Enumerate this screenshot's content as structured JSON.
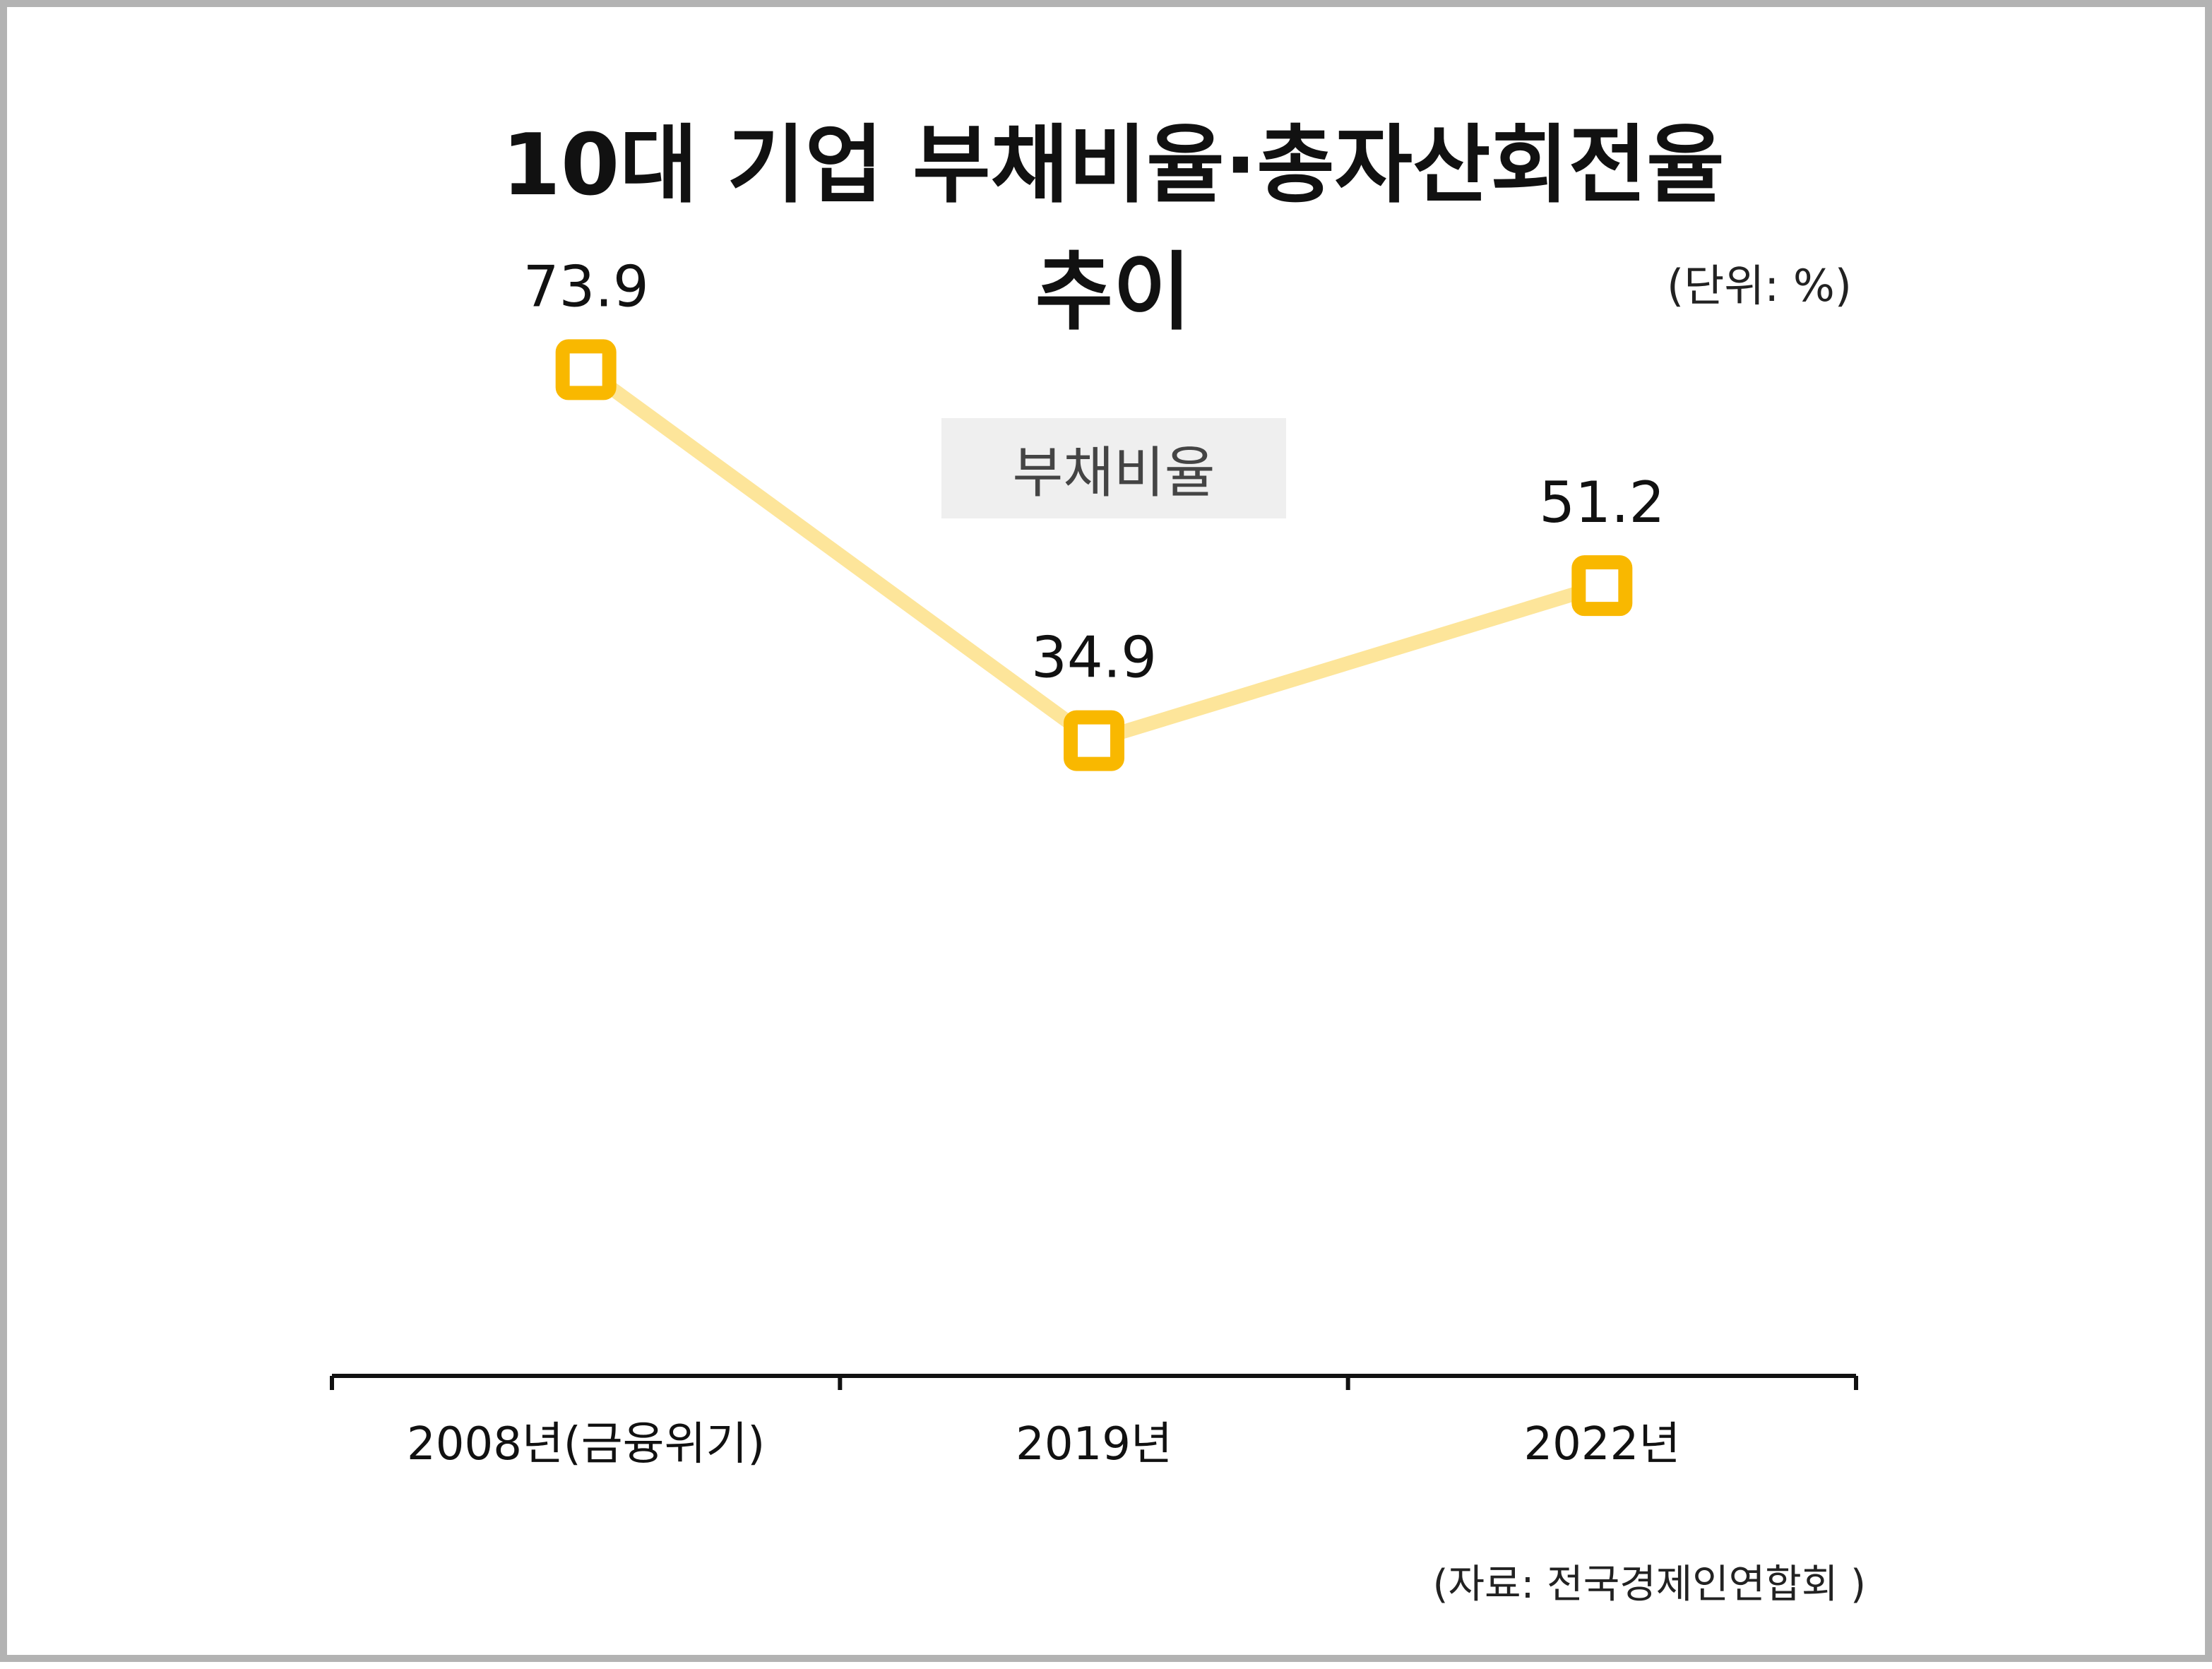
{
  "title_line1": "10대 기업 부채비율·총자산회전율",
  "title_line2": "추이",
  "unit": "(단위: %)",
  "series_label": "부채비율",
  "source": "(자료: 전국경제인연합회 )",
  "colors": {
    "line": "#fde59a",
    "marker": "#f9b800",
    "axis": "#111111"
  },
  "chart_data": {
    "type": "line",
    "categories": [
      "2008년(금융위기)",
      "2019년",
      "2022년"
    ],
    "series": [
      {
        "name": "부채비율",
        "values": [
          73.9,
          34.9,
          51.2
        ],
        "labels": [
          "73.9",
          "34.9",
          "51.2"
        ]
      }
    ],
    "xlabel": "",
    "ylabel": "",
    "grid": false
  }
}
